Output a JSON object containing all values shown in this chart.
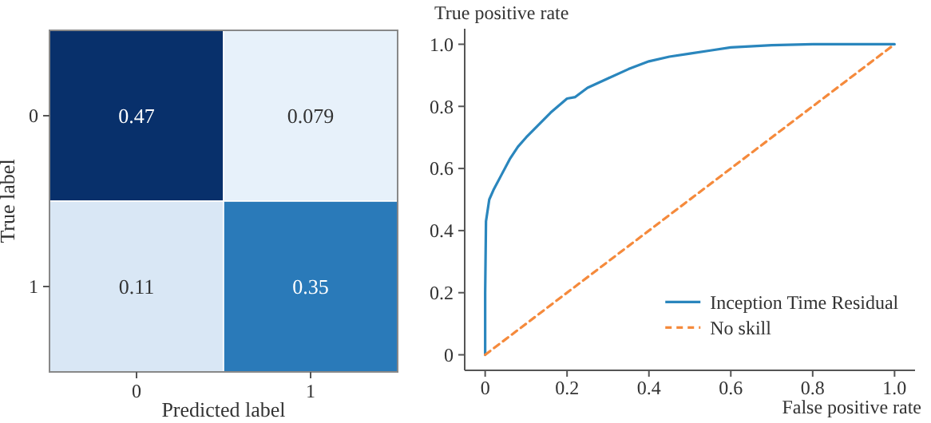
{
  "chart_data": [
    {
      "type": "heatmap",
      "xlabel": "Predicted label",
      "ylabel": "True label",
      "categories": [
        "0",
        "1"
      ],
      "y_categories": [
        "0",
        "1"
      ],
      "cells": [
        [
          0.47,
          0.079
        ],
        [
          0.11,
          0.35
        ]
      ],
      "data_labels": true
    },
    {
      "type": "line",
      "xlabel": "False positive rate",
      "ylabel": "True positive rate",
      "xlim": [
        -0.05,
        1.05
      ],
      "ylim": [
        -0.05,
        1.05
      ],
      "xticks": [
        0,
        0.2,
        0.4,
        0.6,
        0.8,
        {
          "value": 1,
          "label": "1.0"
        }
      ],
      "yticks": [
        0,
        0.2,
        0.4,
        0.6,
        0.8,
        {
          "value": 1,
          "label": "1.0"
        }
      ],
      "legend": "bottom right",
      "grid": false,
      "series": [
        {
          "name": "Inception Time Residual",
          "color": "#2a86bd",
          "line_style": "solid",
          "x": [
            0,
            0,
            0.002,
            0.01,
            0.02,
            0.04,
            0.06,
            0.08,
            0.1,
            0.13,
            0.16,
            0.2,
            0.22,
            0.25,
            0.3,
            0.35,
            0.4,
            0.45,
            0.5,
            0.55,
            0.6,
            0.7,
            0.8,
            1
          ],
          "values": [
            0,
            0.2,
            0.43,
            0.5,
            0.53,
            0.58,
            0.63,
            0.67,
            0.7,
            0.74,
            0.78,
            0.825,
            0.83,
            0.86,
            0.89,
            0.92,
            0.945,
            0.96,
            0.97,
            0.98,
            0.99,
            0.997,
            1,
            1
          ]
        },
        {
          "name": "No skill",
          "color": "#f58a3c",
          "line_style": "dashed",
          "x": [
            0,
            1
          ],
          "values": [
            0,
            1
          ]
        }
      ]
    }
  ]
}
